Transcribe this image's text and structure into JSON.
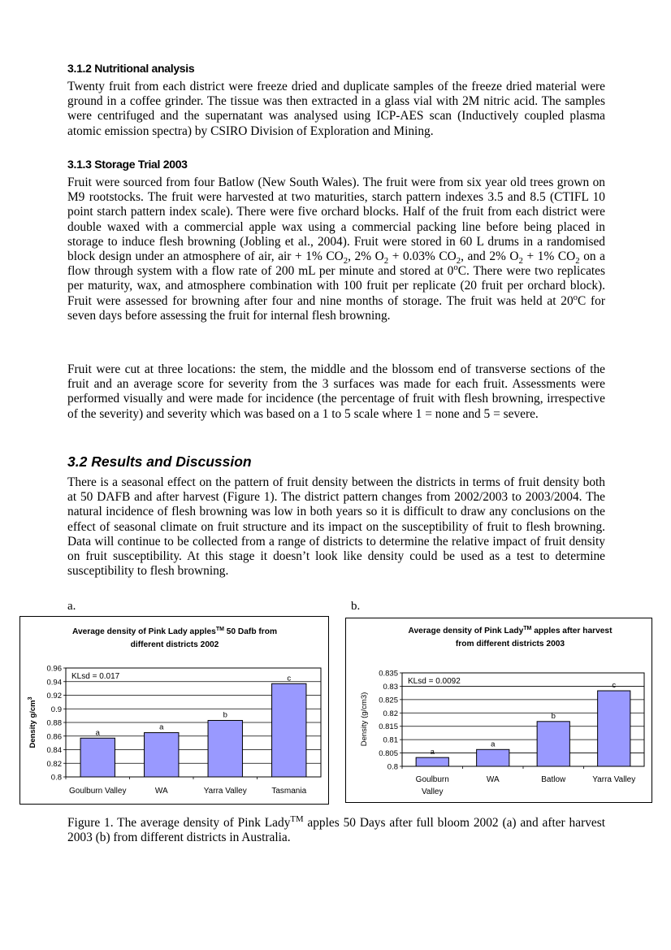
{
  "sections": {
    "s312": {
      "heading": "3.1.2 Nutritional analysis",
      "body": "Twenty fruit from each district were freeze dried and duplicate samples of the freeze dried material were ground in a coffee grinder. The tissue was then extracted in a glass vial with 2M nitric acid. The samples were centrifuged and the supernatant was analysed using ICP-AES scan (Inductively coupled plasma atomic emission spectra) by CSIRO Division of Exploration and Mining."
    },
    "s313": {
      "heading": "3.1.3 Storage Trial 2003",
      "p1_a": "Fruit were sourced from four Batlow (New South Wales). The fruit were from six year old trees grown on M9 rootstocks. The fruit were harvested at two maturities, starch pattern indexes 3.5 and 8.5 (CTIFL 10 point starch pattern index scale). There were five orchard blocks. Half of the fruit from each district were double waxed with a commercial apple wax using a commercial packing line before being placed in storage to induce flesh browning (Jobling et al., 2004). Fruit were stored in 60 L drums in a randomised block design under an atmosphere of air,  air + 1% CO",
      "p1_b": ", 2% O",
      "p1_c": " + 0.03% CO",
      "p1_d": ", and 2% O",
      "p1_e": " + 1% CO",
      "p1_f": " on a flow through system with a flow rate of 200 mL per minute and stored at 0",
      "p1_g": "C. There were two replicates per maturity, wax, and atmosphere combination with 100 fruit per replicate (20 fruit per orchard block). Fruit were assessed for browning after four and nine months of storage. The fruit was held at 20",
      "p1_h": "C for seven days before assessing the fruit for internal flesh browning.",
      "sub2": "2",
      "supo": "o",
      "p2": "Fruit were cut at three locations: the stem, the middle and the blossom end of transverse sections of the fruit and an average score for severity from the 3 surfaces was made for each fruit. Assessments  were performed visually and were made for incidence (the percentage of fruit with flesh browning, irrespective of the severity) and severity which was based on a 1 to 5 scale where 1 = none and 5 = severe."
    },
    "s32": {
      "heading": "3.2 Results and Discussion",
      "body": "There is a seasonal effect on the pattern of fruit density between the districts in terms of fruit density both at 50 DAFB and after harvest (Figure 1). The district pattern changes from 2002/2003 to 2003/2004. The natural incidence of flesh browning was low in both years so it is difficult to draw any conclusions on the effect of seasonal climate on fruit structure and its impact on the susceptibility of fruit to flesh browning. Data will continue to be collected from a range of districts to determine the relative impact of fruit density on fruit susceptibility. At this stage it doesn’t look like density could be used as a test to determine susceptibility to flesh browning."
    }
  },
  "figure": {
    "panel_a_label": "a.",
    "panel_b_label": "b.",
    "caption_a": "Figure 1. The average density of Pink Lady",
    "caption_tm": "TM",
    "caption_b": " apples 50 Days after full bloom 2002 (a) and after harvest 2003 (b) from different districts in Australia."
  },
  "chart_data": [
    {
      "type": "bar",
      "title_line1_a": "Average density of Pink Lady apples",
      "title_tm": "TM",
      "title_line1_b": " 50 Dafb from",
      "title_line2": "different districts 2002",
      "ylabel": "Density g/cm",
      "ylabel_sup": "3",
      "xlabel": "",
      "categories": [
        "Goulburn Valley",
        "WA",
        "Yarra Valley",
        "Tasmania"
      ],
      "values": [
        0.857,
        0.865,
        0.883,
        0.937
      ],
      "letters": [
        "a",
        "a",
        "b",
        "c"
      ],
      "ylim": [
        0.8,
        0.96
      ],
      "yticks": [
        "0.8",
        "0.82",
        "0.84",
        "0.86",
        "0.88",
        "0.9",
        "0.92",
        "0.94",
        "0.96"
      ],
      "annotation": "KLsd = 0.017",
      "bar_color": "#9999ff",
      "grid": true
    },
    {
      "type": "bar",
      "title_line1_a": "Average density of Pink Lady",
      "title_tm": "TM",
      "title_line1_b": " apples after harvest",
      "title_line2": "from different districts 2003",
      "ylabel": "Density (g/cm3)",
      "ylabel_sup": "",
      "xlabel": "",
      "categories": [
        "Goulburn Valley",
        "WA",
        "Batlow",
        "Yarra Valley"
      ],
      "values": [
        0.8033,
        0.8063,
        0.8168,
        0.8283
      ],
      "letters": [
        "a",
        "a",
        "b",
        "c"
      ],
      "ylim": [
        0.8,
        0.835
      ],
      "yticks": [
        "0.8",
        "0.805",
        "0.81",
        "0.815",
        "0.82",
        "0.825",
        "0.83",
        "0.835"
      ],
      "annotation": "KLsd = 0.0092",
      "bar_color": "#9999ff",
      "grid": true
    }
  ]
}
